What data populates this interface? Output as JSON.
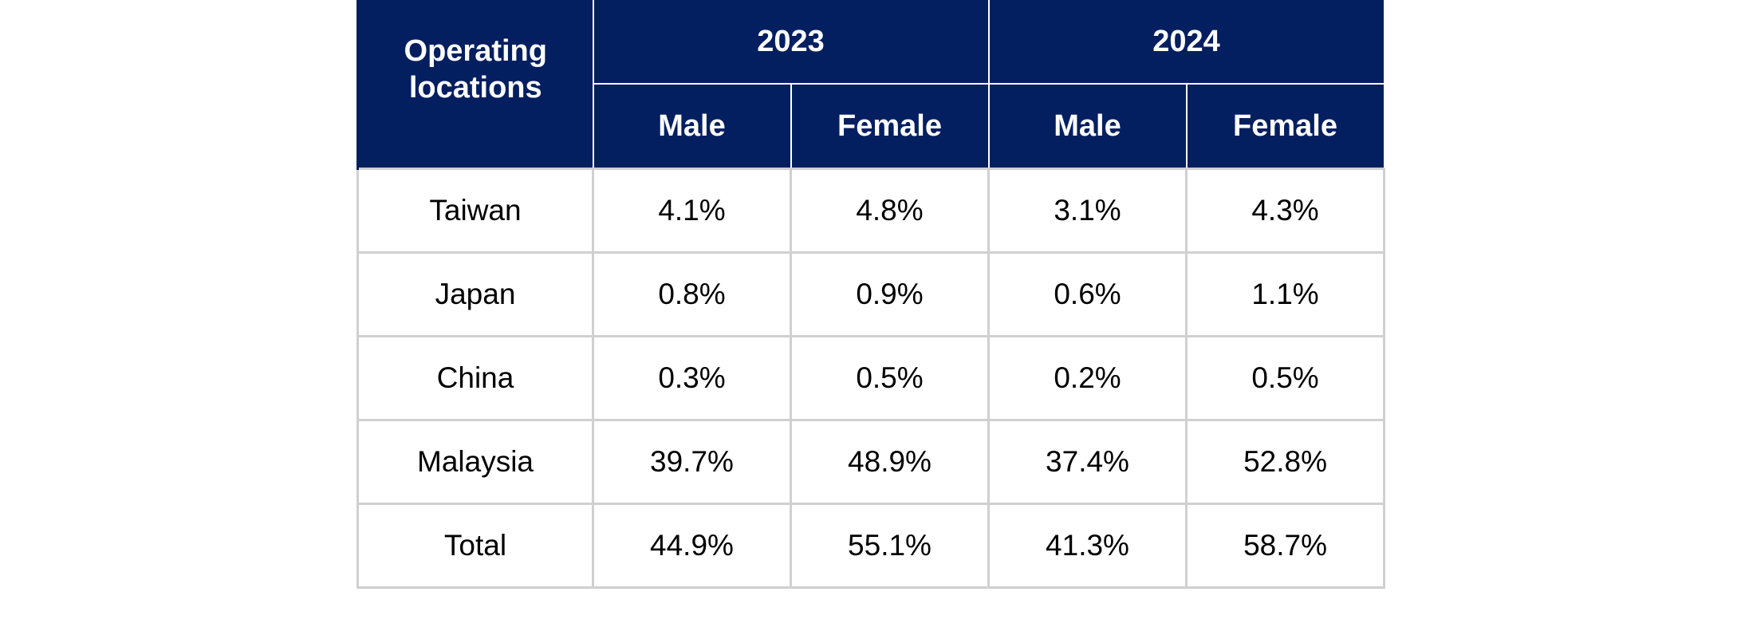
{
  "table": {
    "header": {
      "location_label": "Operating locations",
      "years": [
        "2023",
        "2024"
      ],
      "subheaders": [
        "Male",
        "Female",
        "Male",
        "Female"
      ]
    },
    "rows": [
      {
        "location": "Taiwan",
        "values": [
          "4.1%",
          "4.8%",
          "3.1%",
          "4.3%"
        ]
      },
      {
        "location": "Japan",
        "values": [
          "0.8%",
          "0.9%",
          "0.6%",
          "1.1%"
        ]
      },
      {
        "location": "China",
        "values": [
          "0.3%",
          "0.5%",
          "0.2%",
          "0.5%"
        ]
      },
      {
        "location": "Malaysia",
        "values": [
          "39.7%",
          "48.9%",
          "37.4%",
          "52.8%"
        ]
      },
      {
        "location": "Total",
        "values": [
          "44.9%",
          "55.1%",
          "41.3%",
          "58.7%"
        ]
      }
    ]
  },
  "colors": {
    "header_bg": "#031f60",
    "header_text": "#ffffff",
    "grid": "#d0d0d0"
  }
}
